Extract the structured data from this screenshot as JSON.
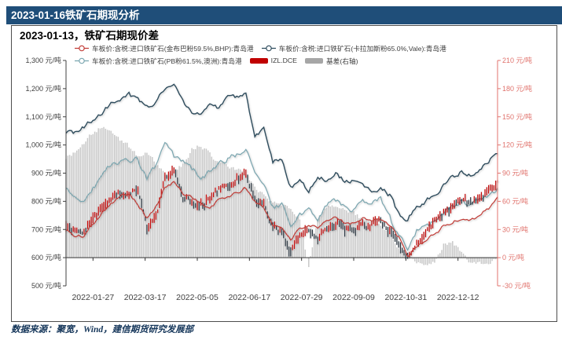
{
  "header": {
    "title": "2023-01-16铁矿石期现分析"
  },
  "chart": {
    "title": "2023-01-13，铁矿石期现价差"
  },
  "footer": {
    "source": "数据来源：聚宽，Wind，建信期货研究发展部"
  },
  "colors": {
    "header_bg": "#1F4E79",
    "red_line": "#c13b36",
    "navy_line": "#2f4d5e",
    "teal_line": "#7aa6b0",
    "candle_up": "#c00000",
    "candle_down": "#25313c",
    "bar_fill": "#c8c8c8",
    "bar_swatch": "#a6a6a6",
    "right_axis": "#e0736d",
    "axis_text": "#404040"
  },
  "chart_data": {
    "type": "line+candlestick+bar",
    "title": "2023-01-13，铁矿石期现价差",
    "x_ticks": [
      "2022-01-27",
      "2022-03-17",
      "2022-05-05",
      "2022-06-17",
      "2022-07-29",
      "2022-09-09",
      "2022-10-31",
      "2022-12-12"
    ],
    "left_axis": {
      "unit": "元/吨",
      "min": 500,
      "max": 1300,
      "step": 100
    },
    "right_axis": {
      "unit": "元/吨",
      "min": -30,
      "max": 210,
      "step": 30
    },
    "anchor_step_days": 5,
    "series": [
      {
        "name": "车板价:含税:进口铁矿石(金布巴粉59.5%,BHP):青岛港",
        "type": "line",
        "axis": "left",
        "values": [
          702,
          672,
          678,
          722,
          762,
          795,
          815,
          832,
          792,
          740,
          780,
          848,
          868,
          828,
          818,
          792,
          772,
          805,
          818,
          828,
          848,
          800,
          775,
          718,
          705,
          668,
          700,
          718,
          700,
          728,
          742,
          728,
          722,
          742,
          736,
          738,
          712,
          672,
          602,
          640,
          662,
          682,
          712,
          725,
          738,
          735,
          752,
          775,
          812
        ]
      },
      {
        "name": "车板价:含税:进口铁矿石(卡拉加斯粉65.0%,Vale):青岛港",
        "type": "line",
        "axis": "left",
        "values": [
          1047,
          1042,
          1062,
          1090,
          1118,
          1148,
          1166,
          1178,
          1162,
          1132,
          1158,
          1200,
          1215,
          1150,
          1122,
          1105,
          1147,
          1126,
          1165,
          1170,
          1178,
          1032,
          1052,
          942,
          952,
          852,
          868,
          836,
          888,
          878,
          908,
          866,
          872,
          862,
          840,
          846,
          822,
          752,
          738,
          782,
          802,
          822,
          854,
          884,
          908,
          892,
          912,
          944,
          972
        ]
      },
      {
        "name": "车板价:含税:进口铁矿石(PB粉61.5%,澳洲):青岛港",
        "type": "line",
        "axis": "left",
        "values": [
          840,
          815,
          800,
          845,
          895,
          930,
          945,
          940,
          950,
          875,
          930,
          1005,
          958,
          942,
          916,
          885,
          905,
          930,
          948,
          968,
          986,
          908,
          862,
          778,
          788,
          708,
          752,
          770,
          740,
          788,
          806,
          778,
          768,
          795,
          788,
          808,
          742,
          678,
          632,
          695,
          705,
          732,
          762,
          782,
          798,
          790,
          812,
          826,
          842
        ]
      },
      {
        "name": "IZL.DCE",
        "type": "candlestick",
        "axis": "left",
        "values": [
          715,
          698,
          692,
          738,
          772,
          812,
          828,
          822,
          838,
          700,
          742,
          885,
          900,
          822,
          800,
          788,
          812,
          842,
          852,
          880,
          902,
          812,
          788,
          698,
          688,
          625,
          678,
          700,
          668,
          700,
          718,
          698,
          692,
          722,
          715,
          722,
          692,
          645,
          592,
          648,
          688,
          722,
          755,
          788,
          805,
          798,
          818,
          838,
          868
        ]
      },
      {
        "name": "基差(右轴)",
        "type": "bar",
        "axis": "right",
        "values": [
          107,
          112,
          122,
          133,
          140,
          135,
          126,
          118,
          108,
          112,
          100,
          88,
          90,
          100,
          115,
          120,
          110,
          100,
          98,
          94,
          90,
          74,
          66,
          58,
          56,
          50,
          42,
          -12,
          42,
          52,
          55,
          50,
          48,
          40,
          38,
          34,
          26,
          10,
          3,
          -5,
          -6,
          -3,
          14,
          16,
          4,
          -5,
          -5,
          -7,
          -3
        ]
      }
    ]
  }
}
